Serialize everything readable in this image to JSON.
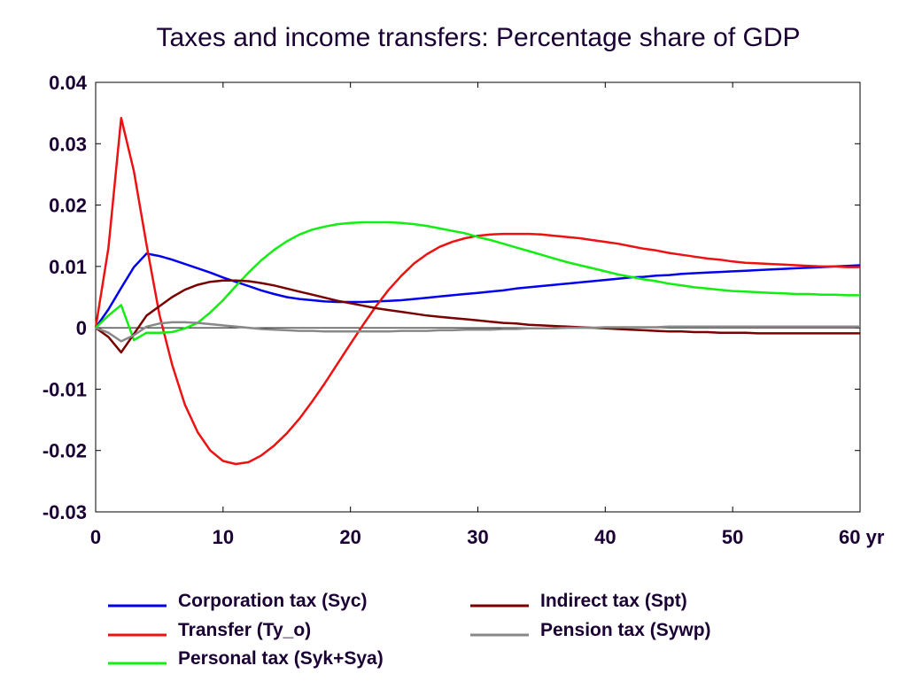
{
  "chart_data": {
    "type": "line",
    "title": "Taxes and income transfers: Percentage share of GDP",
    "xlabel": "",
    "ylabel": "",
    "xlim": [
      0,
      60
    ],
    "ylim": [
      -0.03,
      0.04
    ],
    "xticks": [
      0,
      10,
      20,
      30,
      40,
      50,
      60
    ],
    "xtick_labels": [
      "0",
      "10",
      "20",
      "30",
      "40",
      "50",
      "60 yr"
    ],
    "yticks": [
      0.04,
      0.03,
      0.02,
      0.01,
      0,
      -0.01,
      -0.02,
      -0.03
    ],
    "ytick_labels": [
      "0.04",
      "0.03",
      "0.02",
      "0.01",
      "0",
      "-0.01",
      "-0.02",
      "-0.03"
    ],
    "grid": false,
    "legend_position": "bottom",
    "x": [
      0,
      1,
      2,
      3,
      4,
      5,
      6,
      7,
      8,
      9,
      10,
      11,
      12,
      13,
      14,
      15,
      16,
      17,
      18,
      19,
      20,
      21,
      22,
      23,
      24,
      25,
      26,
      27,
      28,
      29,
      30,
      31,
      32,
      33,
      34,
      35,
      36,
      37,
      38,
      39,
      40,
      41,
      42,
      43,
      44,
      45,
      46,
      47,
      48,
      49,
      50,
      51,
      52,
      53,
      54,
      55,
      56,
      57,
      58,
      59,
      60
    ],
    "series": [
      {
        "name": "Corporation tax (Syc)",
        "color": "#0000ee",
        "values": [
          0,
          0.003,
          0.0065,
          0.0099,
          0.0121,
          0.0117,
          0.0111,
          0.0104,
          0.0097,
          0.009,
          0.0082,
          0.0075,
          0.0068,
          0.0061,
          0.0055,
          0.005,
          0.0047,
          0.0045,
          0.0043,
          0.0042,
          0.0042,
          0.0042,
          0.0043,
          0.0044,
          0.0045,
          0.0047,
          0.0049,
          0.0051,
          0.0053,
          0.0055,
          0.0057,
          0.0059,
          0.0061,
          0.0064,
          0.0066,
          0.0068,
          0.007,
          0.0072,
          0.0074,
          0.0076,
          0.0078,
          0.008,
          0.0082,
          0.0083,
          0.0085,
          0.0086,
          0.0088,
          0.0089,
          0.009,
          0.0091,
          0.0092,
          0.0093,
          0.0094,
          0.0095,
          0.0096,
          0.0097,
          0.0098,
          0.0099,
          0.01,
          0.0101,
          0.0102
        ]
      },
      {
        "name": "Transfer (Ty_o)",
        "color": "#ee1111",
        "values": [
          0,
          0.013,
          0.0342,
          0.0255,
          0.0135,
          0.0022,
          -0.006,
          -0.0125,
          -0.017,
          -0.02,
          -0.0217,
          -0.0222,
          -0.0219,
          -0.0208,
          -0.0192,
          -0.0172,
          -0.0148,
          -0.012,
          -0.009,
          -0.0058,
          -0.0026,
          0.0005,
          0.0035,
          0.0062,
          0.0085,
          0.0105,
          0.012,
          0.0132,
          0.014,
          0.0146,
          0.015,
          0.0152,
          0.0153,
          0.0153,
          0.0153,
          0.0152,
          0.015,
          0.0148,
          0.0146,
          0.0143,
          0.014,
          0.0137,
          0.0133,
          0.0129,
          0.0126,
          0.0122,
          0.0119,
          0.0116,
          0.0113,
          0.0111,
          0.0108,
          0.0106,
          0.0105,
          0.0104,
          0.0103,
          0.0102,
          0.0101,
          0.01,
          0.01,
          0.0099,
          0.0099
        ]
      },
      {
        "name": "Personal tax (Syk+Sya)",
        "color": "#11ee11",
        "values": [
          0,
          0.002,
          0.0037,
          -0.002,
          -0.0008,
          -0.0008,
          -0.0007,
          -0.0001,
          0.0008,
          0.0025,
          0.0045,
          0.0068,
          0.009,
          0.011,
          0.0127,
          0.0141,
          0.0152,
          0.016,
          0.0165,
          0.0169,
          0.0171,
          0.0172,
          0.0172,
          0.0172,
          0.0171,
          0.0169,
          0.0166,
          0.0162,
          0.0158,
          0.0154,
          0.0148,
          0.0143,
          0.0137,
          0.0131,
          0.0125,
          0.0119,
          0.0113,
          0.0107,
          0.0102,
          0.0097,
          0.0092,
          0.0087,
          0.0083,
          0.0079,
          0.0076,
          0.0072,
          0.0069,
          0.0066,
          0.0064,
          0.0062,
          0.006,
          0.0059,
          0.0058,
          0.0057,
          0.0056,
          0.0055,
          0.0055,
          0.0054,
          0.0054,
          0.0053,
          0.0053
        ]
      },
      {
        "name": "Indirect tax (Spt)",
        "color": "#7a0000",
        "values": [
          0,
          -0.0015,
          -0.004,
          -0.001,
          0.002,
          0.0035,
          0.005,
          0.0062,
          0.007,
          0.0075,
          0.0077,
          0.0077,
          0.0076,
          0.0073,
          0.0069,
          0.0064,
          0.0059,
          0.0054,
          0.0049,
          0.0044,
          0.004,
          0.0036,
          0.0032,
          0.0029,
          0.0026,
          0.0023,
          0.002,
          0.0018,
          0.0016,
          0.0014,
          0.0012,
          0.001,
          0.0008,
          0.0007,
          0.0005,
          0.0004,
          0.0003,
          0.0002,
          0.0001,
          0.0,
          -0.0001,
          -0.0002,
          -0.0003,
          -0.0004,
          -0.0005,
          -0.0006,
          -0.0006,
          -0.0007,
          -0.0007,
          -0.0008,
          -0.0008,
          -0.0008,
          -0.0009,
          -0.0009,
          -0.0009,
          -0.0009,
          -0.0009,
          -0.0009,
          -0.0009,
          -0.0009,
          -0.0009
        ]
      },
      {
        "name": "Pension tax (Sywp)",
        "color": "#888888",
        "values": [
          0,
          -0.0008,
          -0.0022,
          -0.0012,
          0.0002,
          0.0007,
          0.0009,
          0.0009,
          0.0008,
          0.0006,
          0.0004,
          0.0002,
          0.0,
          -0.0002,
          -0.0003,
          -0.0004,
          -0.0005,
          -0.0005,
          -0.0006,
          -0.0006,
          -0.0006,
          -0.0006,
          -0.0006,
          -0.0006,
          -0.0005,
          -0.0005,
          -0.0005,
          -0.0004,
          -0.0004,
          -0.0003,
          -0.0003,
          -0.0003,
          -0.0002,
          -0.0002,
          -0.0001,
          -0.0001,
          -0.0001,
          0.0,
          0.0,
          0.0,
          0.0001,
          0.0001,
          0.0001,
          0.0001,
          0.0001,
          0.0002,
          0.0002,
          0.0002,
          0.0002,
          0.0002,
          0.0002,
          0.0002,
          0.0002,
          0.0002,
          0.0002,
          0.0002,
          0.0002,
          0.0002,
          0.0002,
          0.0002,
          0.0002
        ]
      }
    ]
  },
  "legend": [
    {
      "label": "Corporation tax (Syc)",
      "color": "#0000ee"
    },
    {
      "label": "Indirect tax (Spt)",
      "color": "#7a0000"
    },
    {
      "label": "Transfer (Ty_o)",
      "color": "#ee1111"
    },
    {
      "label": "Pension tax (Sywp)",
      "color": "#888888"
    },
    {
      "label": "Personal tax (Syk+Sya)",
      "color": "#11ee11"
    }
  ]
}
